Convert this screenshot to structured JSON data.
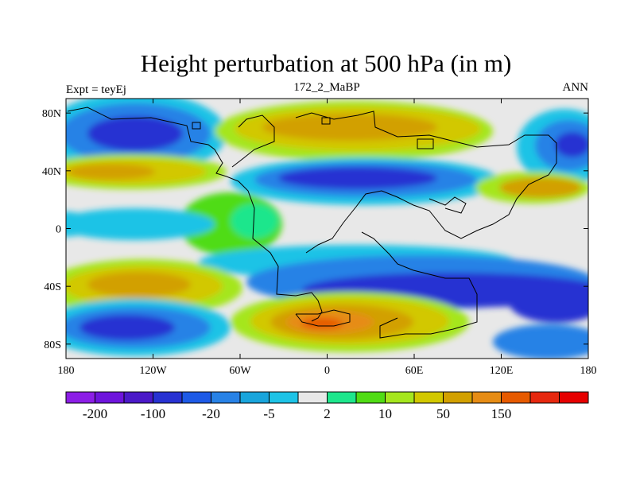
{
  "chart_data": {
    "type": "heatmap",
    "title": "Height perturbation at 500 hPa (in m)",
    "left_label": "Expt = teyEj",
    "center_label": "172_2_MaBP",
    "right_label": "ANN",
    "x_ticks": [
      {
        "value": -180,
        "label": "180"
      },
      {
        "value": -120,
        "label": "120W"
      },
      {
        "value": -60,
        "label": "60W"
      },
      {
        "value": 0,
        "label": "0"
      },
      {
        "value": 60,
        "label": "60E"
      },
      {
        "value": 120,
        "label": "120E"
      },
      {
        "value": 180,
        "label": "180"
      }
    ],
    "y_ticks": [
      {
        "value": 80,
        "label": "80N"
      },
      {
        "value": 40,
        "label": "40N"
      },
      {
        "value": 0,
        "label": "0"
      },
      {
        "value": -40,
        "label": "40S"
      },
      {
        "value": -80,
        "label": "80S"
      }
    ],
    "xlim": [
      -180,
      180
    ],
    "ylim": [
      -90,
      90
    ],
    "colorbar": {
      "colors": [
        "#8c1ee6",
        "#6e14dc",
        "#4b19c8",
        "#2832d2",
        "#1e5ae6",
        "#2882e6",
        "#19a5dc",
        "#1ec3e6",
        "#e8e8e8",
        "#1ee68c",
        "#50dc14",
        "#a5e61e",
        "#d2c800",
        "#d2a000",
        "#e68c14",
        "#e65a00",
        "#e6280f",
        "#e60000"
      ],
      "tick_labels": [
        {
          "after_box": 1,
          "label": "-200"
        },
        {
          "after_box": 3,
          "label": "-100"
        },
        {
          "after_box": 5,
          "label": "-20"
        },
        {
          "after_box": 7,
          "label": "-5"
        },
        {
          "after_box": 9,
          "label": "2"
        },
        {
          "after_box": 11,
          "label": "10"
        },
        {
          "after_box": 13,
          "label": "50"
        },
        {
          "after_box": 15,
          "label": "150"
        }
      ]
    }
  }
}
